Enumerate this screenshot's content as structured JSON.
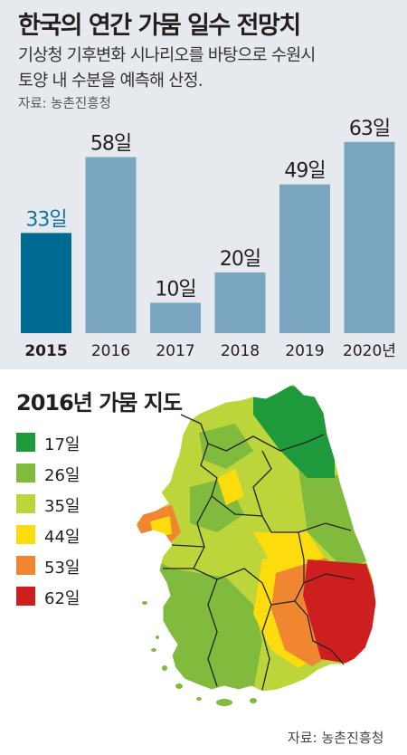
{
  "header": {
    "title": "한국의 연간 가뭄 일수 전망치",
    "subtitle_line1": "기상청 기후변화 시나리오를 바탕으로 수원시",
    "subtitle_line2": "토양 내 수분을 예측해 산정.",
    "source": "자료: 농촌진흥청"
  },
  "chart_data": [
    {
      "type": "bar",
      "title": "한국의 연간 가뭄 일수 전망치",
      "categories": [
        "2015",
        "2016",
        "2017",
        "2018",
        "2019",
        "2020년"
      ],
      "values": [
        33,
        58,
        10,
        20,
        49,
        63
      ],
      "value_labels": [
        "33일",
        "58일",
        "10일",
        "20일",
        "49일",
        "63일"
      ],
      "ylim": [
        0,
        68
      ],
      "highlight_index": 0,
      "grid": false,
      "legend": "none",
      "colors": {
        "bar": "#7aa6bf",
        "highlight": "#006b92",
        "highlight_label": "#1273a0"
      }
    }
  ],
  "map": {
    "title": "2016년 가뭄 지도",
    "legend": [
      {
        "label": "17일",
        "color": "#1e9a3c"
      },
      {
        "label": "26일",
        "color": "#80bb3e"
      },
      {
        "label": "35일",
        "color": "#bcd53b"
      },
      {
        "label": "44일",
        "color": "#fcdc0c"
      },
      {
        "label": "53일",
        "color": "#f08630"
      },
      {
        "label": "62일",
        "color": "#cd1f1f"
      }
    ],
    "source": "자료: 농촌진흥청"
  }
}
